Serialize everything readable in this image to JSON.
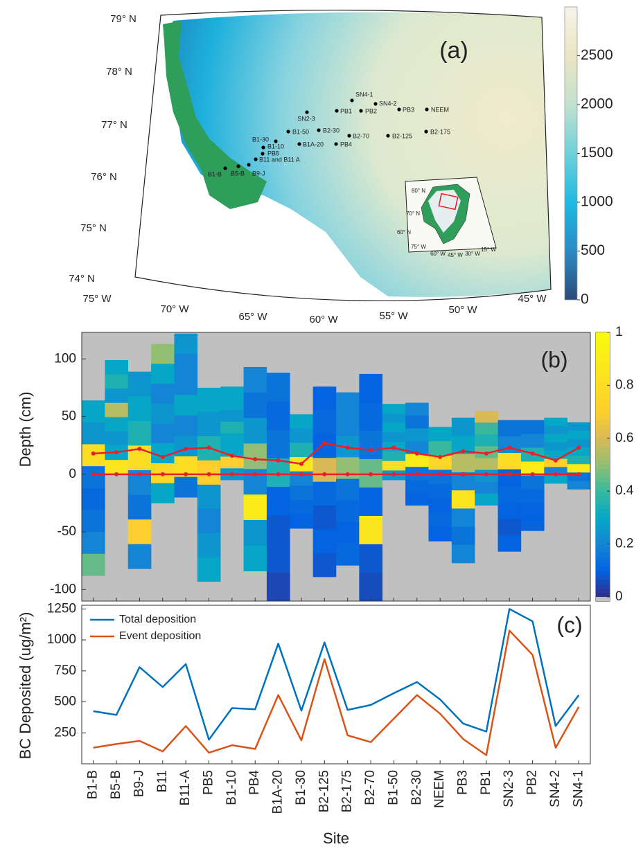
{
  "chart_data": [
    {
      "type": "map",
      "label": "(a)",
      "lat_labels": [
        "79° N",
        "78° N",
        "77° N",
        "76° N",
        "75° N",
        "74° N"
      ],
      "lon_labels": [
        "75° W",
        "70° W",
        "65° W",
        "60° W",
        "55° W",
        "50° W",
        "45° W"
      ],
      "sites": [
        "SN4-1",
        "SN4-2",
        "SN2-3",
        "PB1",
        "PB2",
        "PB3",
        "NEEM",
        "B1-50",
        "B2-30",
        "B2-70",
        "B2-125",
        "B2-175",
        "B1-30",
        "B1-10",
        "B1A-20",
        "PB4",
        "PB5",
        "B11 and B11 A",
        "B1-B",
        "B5-B",
        "B9-J"
      ],
      "colorbar": {
        "ylim": [
          0,
          3000
        ],
        "yticks": [
          0,
          500,
          1000,
          1500,
          2000,
          2500
        ]
      },
      "inset": {
        "lat_labels": [
          "80° N",
          "70° N",
          "60° N"
        ],
        "lon_labels": [
          "75° W",
          "60° W",
          "45° W",
          "30° W",
          "15° W"
        ]
      }
    },
    {
      "type": "heatmap-columns",
      "label": "(b)",
      "ylabel": "Depth (cm)",
      "ylim": [
        -110,
        123
      ],
      "yticks": [
        -100,
        -50,
        0,
        50,
        100
      ],
      "columns": [
        {
          "top": 64,
          "bottom": -88,
          "cells": [
            0.3,
            0.25,
            0.8,
            0.15,
            0.12,
            0.15,
            0.2,
            0.45
          ]
        },
        {
          "top": 99,
          "bottom": 0,
          "cells": [
            0.3,
            0.35,
            0.25,
            0.55,
            0.3,
            0.25,
            0.3,
            0.85
          ]
        },
        {
          "top": 89,
          "bottom": -82,
          "cells": [
            0.25,
            0.3,
            0.35,
            0.8,
            0.2,
            0.15,
            0.7,
            0.2
          ]
        },
        {
          "top": 113,
          "bottom": -25,
          "cells": [
            0.5,
            0.3,
            0.2,
            0.25,
            0.2,
            0.3,
            0.75,
            0.3
          ]
        },
        {
          "top": 122,
          "bottom": -20,
          "cells": [
            0.25,
            0.2,
            0.2,
            0.3,
            0.2,
            0.25,
            0.8,
            0.15
          ]
        },
        {
          "top": 75,
          "bottom": -93,
          "cells": [
            0.3,
            0.25,
            0.35,
            0.7,
            0.25,
            0.2,
            0.25,
            0.3
          ]
        },
        {
          "top": 76,
          "bottom": -5,
          "cells": [
            0.3,
            0.3,
            0.25,
            0.35,
            0.3,
            0.3,
            0.7,
            0.25
          ]
        },
        {
          "top": 93,
          "bottom": -84,
          "cells": [
            0.2,
            0.15,
            0.25,
            0.5,
            0.2,
            0.9,
            0.25,
            0.3
          ]
        },
        {
          "top": 88,
          "bottom": -110,
          "cells": [
            0.15,
            0.12,
            0.15,
            0.35,
            0.1,
            0.08,
            0.08,
            0.05
          ]
        },
        {
          "top": 52,
          "bottom": -47,
          "cells": [
            0.3,
            0.25,
            0.35,
            0.85,
            0.2,
            0.15,
            0.12,
            0.1
          ]
        },
        {
          "top": 76,
          "bottom": -89,
          "cells": [
            0.1,
            0.12,
            0.1,
            0.6,
            0.12,
            0.08,
            0.1,
            0.08
          ]
        },
        {
          "top": 71,
          "bottom": -79,
          "cells": [
            0.2,
            0.2,
            0.25,
            0.5,
            0.15,
            0.12,
            0.1,
            0.12
          ]
        },
        {
          "top": 87,
          "bottom": -110,
          "cells": [
            0.1,
            0.12,
            0.15,
            0.45,
            0.1,
            0.85,
            0.08,
            0.06
          ]
        },
        {
          "top": 61,
          "bottom": -5,
          "cells": [
            0.3,
            0.25,
            0.3,
            0.25,
            0.3,
            0.35,
            0.8,
            0.25
          ]
        },
        {
          "top": 62,
          "bottom": -27,
          "cells": [
            0.2,
            0.15,
            0.25,
            0.2,
            0.9,
            0.15,
            0.12,
            0.1
          ]
        },
        {
          "top": 41,
          "bottom": -58,
          "cells": [
            0.3,
            0.4,
            0.75,
            0.15,
            0.12,
            0.1,
            0.12,
            0.1
          ]
        },
        {
          "top": 49,
          "bottom": -77,
          "cells": [
            0.25,
            0.3,
            0.55,
            0.2,
            0.85,
            0.2,
            0.15,
            0.2
          ]
        },
        {
          "top": 55,
          "bottom": -27,
          "cells": [
            0.6,
            0.4,
            0.35,
            0.45,
            0.55,
            0.25,
            0.2,
            0.3
          ]
        },
        {
          "top": 47,
          "bottom": -67,
          "cells": [
            0.15,
            0.2,
            0.8,
            0.1,
            0.12,
            0.1,
            0.08,
            0.1
          ]
        },
        {
          "top": 47,
          "bottom": -49,
          "cells": [
            0.15,
            0.2,
            0.35,
            0.9,
            0.15,
            0.12,
            0.1,
            0.1
          ]
        },
        {
          "top": 49,
          "bottom": -8,
          "cells": [
            0.3,
            0.25,
            0.3,
            0.25,
            0.3,
            0.7,
            0.2,
            0.3
          ]
        },
        {
          "top": 45,
          "bottom": -13,
          "cells": [
            0.25,
            0.3,
            0.25,
            0.3,
            0.35,
            0.9,
            0.15,
            0.2
          ]
        }
      ],
      "series": [
        {
          "color": "#e8202a",
          "values": [
            18,
            19,
            22,
            15,
            22,
            23,
            16,
            13,
            12,
            9,
            27,
            23,
            21,
            23,
            18,
            15,
            20,
            18,
            23,
            18,
            12,
            23
          ]
        },
        {
          "color": "#e8202a",
          "values": [
            0,
            0,
            0,
            0,
            0,
            0,
            0,
            0,
            0,
            0,
            0,
            0,
            0,
            0,
            0,
            0,
            0,
            0,
            0,
            0,
            0,
            0
          ]
        }
      ],
      "colorbar": {
        "ylim": [
          0,
          1
        ],
        "yticks": [
          0,
          0.2,
          0.4,
          0.6,
          0.8,
          1
        ]
      }
    },
    {
      "type": "line",
      "label": "(c)",
      "xlabel": "Site",
      "ylabel": "BC Deposited (ug/m²)",
      "categories": [
        "B1-B",
        "B5-B",
        "B9-J",
        "B11",
        "B11-A",
        "PB5",
        "B1-10",
        "PB4",
        "B1A-20",
        "B1-30",
        "B2-125",
        "B2-175",
        "B2-70",
        "B1-50",
        "B2-30",
        "NEEM",
        "PB3",
        "PB1",
        "SN2-3",
        "PB2",
        "SN4-2",
        "SN4-1"
      ],
      "ylim": [
        0,
        1280
      ],
      "yticks": [
        250,
        500,
        750,
        1000,
        1250
      ],
      "legend": "upper left",
      "series": [
        {
          "name": "Total deposition",
          "color": "#0072bd",
          "values": [
            425,
            395,
            780,
            620,
            805,
            195,
            450,
            440,
            970,
            430,
            980,
            435,
            475,
            570,
            660,
            520,
            325,
            260,
            1250,
            1150,
            305,
            555
          ]
        },
        {
          "name": "Event deposition",
          "color": "#d95319",
          "values": [
            130,
            160,
            185,
            100,
            305,
            90,
            150,
            120,
            555,
            190,
            845,
            230,
            175,
            365,
            555,
            405,
            200,
            70,
            1075,
            880,
            130,
            460
          ]
        }
      ]
    }
  ]
}
